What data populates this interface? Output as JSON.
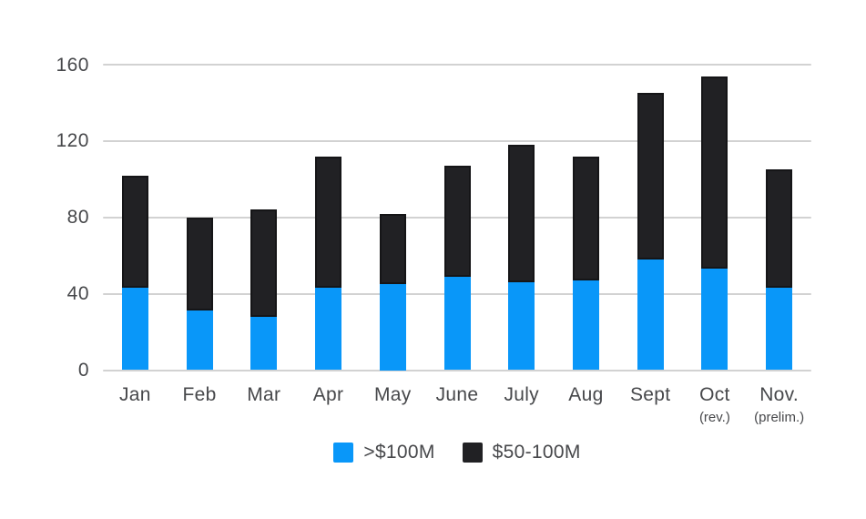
{
  "chart_data": {
    "type": "bar",
    "stacked": true,
    "title": "",
    "xlabel": "",
    "ylabel": "",
    "categories": [
      "Jan",
      "Feb",
      "Mar",
      "Apr",
      "May",
      "June",
      "July",
      "Aug",
      "Sept",
      "Oct",
      "Nov."
    ],
    "category_sublabels": [
      "",
      "",
      "",
      "",
      "",
      "",
      "",
      "",
      "",
      "(rev.)",
      "(prelim.)"
    ],
    "series": [
      {
        "name": ">$100M",
        "color": "#0997f9",
        "values": [
          43,
          31,
          28,
          43,
          45,
          49,
          46,
          47,
          58,
          53,
          43
        ]
      },
      {
        "name": "$50-100M",
        "color": "#212124",
        "values": [
          59,
          49,
          56,
          69,
          37,
          58,
          72,
          65,
          87,
          101,
          62
        ]
      }
    ],
    "ylim": [
      0,
      160
    ],
    "yticks": [
      0,
      40,
      80,
      120,
      160
    ],
    "grid": true,
    "legend_position": "bottom"
  },
  "style": {
    "background": "#ffffff",
    "gridline_color": "#d2d2d2",
    "axis_text_color": "#47484b",
    "bar_border_color": "#151517"
  }
}
